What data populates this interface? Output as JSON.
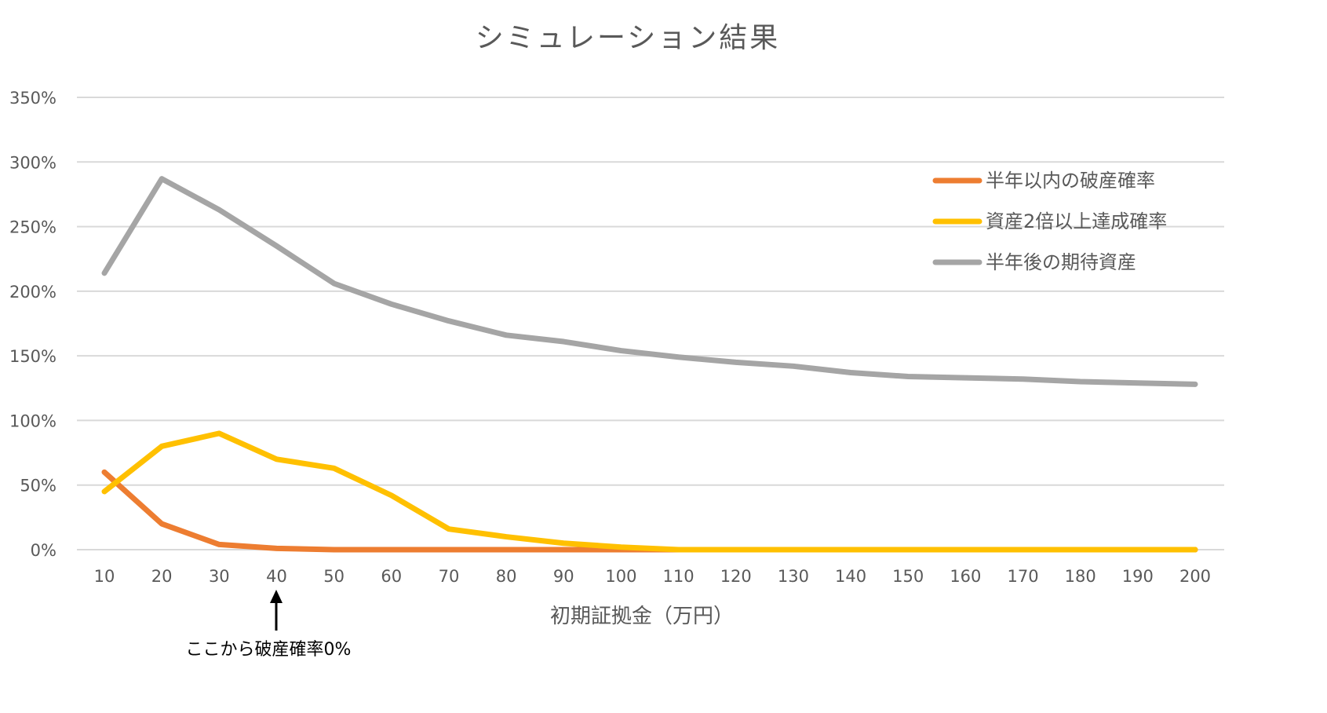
{
  "chart_data": {
    "type": "line",
    "title": "シミュレーション結果",
    "xlabel": "初期証拠金（万円）",
    "ylabel": "",
    "x": [
      10,
      20,
      30,
      40,
      50,
      60,
      70,
      80,
      90,
      100,
      110,
      120,
      130,
      140,
      150,
      160,
      170,
      180,
      190,
      200
    ],
    "ylim": [
      0,
      350
    ],
    "yticks": [
      "0%",
      "50%",
      "100%",
      "150%",
      "200%",
      "250%",
      "300%",
      "350%"
    ],
    "ytick_values": [
      0,
      50,
      100,
      150,
      200,
      250,
      300,
      350
    ],
    "grid": true,
    "legend_position": "right",
    "series": [
      {
        "name": "半年以内の破産確率",
        "color": "#ED7D31",
        "values": [
          60,
          20,
          4,
          1,
          0,
          0,
          0,
          0,
          0,
          0,
          0,
          0,
          0,
          0,
          0,
          0,
          0,
          0,
          0,
          0
        ]
      },
      {
        "name": "資産2倍以上達成確率",
        "color": "#FFC000",
        "values": [
          45,
          80,
          90,
          70,
          63,
          42,
          16,
          10,
          5,
          2,
          0,
          0,
          0,
          0,
          0,
          0,
          0,
          0,
          0,
          0
        ]
      },
      {
        "name": "半年後の期待資産",
        "color": "#A5A5A5",
        "values": [
          214,
          287,
          263,
          235,
          206,
          190,
          177,
          166,
          161,
          154,
          149,
          145,
          142,
          137,
          134,
          133,
          132,
          130,
          129,
          128
        ]
      }
    ],
    "annotation": {
      "text": "ここから破産確率0%",
      "x": 40
    }
  }
}
